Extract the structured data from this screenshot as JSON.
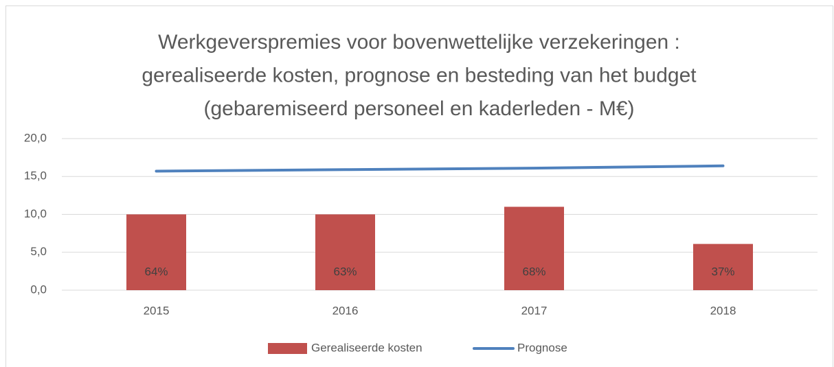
{
  "chart_data": {
    "type": "bar",
    "title": [
      "Werkgeverspremies voor bovenwettelijke verzekeringen :",
      "gerealiseerde kosten, prognose en besteding van het budget",
      "(gebaremiseerd personeel en kaderleden - M€)"
    ],
    "categories": [
      "2015",
      "2016",
      "2017",
      "2018"
    ],
    "series": [
      {
        "name": "Gerealiseerde kosten",
        "type": "bar",
        "color": "#c0504d",
        "values": [
          10.0,
          10.0,
          11.0,
          6.1
        ],
        "annotations": [
          "64%",
          "63%",
          "68%",
          "37%"
        ]
      },
      {
        "name": "Prognose",
        "type": "line",
        "color": "#4f81bd",
        "values": [
          15.7,
          15.9,
          16.1,
          16.4
        ]
      }
    ],
    "ylim": [
      0,
      20
    ],
    "yticks": [
      {
        "value": 0,
        "label": "0,0"
      },
      {
        "value": 5,
        "label": "5,0"
      },
      {
        "value": 10,
        "label": "10,0"
      },
      {
        "value": 15,
        "label": "15,0"
      },
      {
        "value": 20,
        "label": "20,0"
      }
    ],
    "grid": true,
    "legend": "bottom"
  }
}
